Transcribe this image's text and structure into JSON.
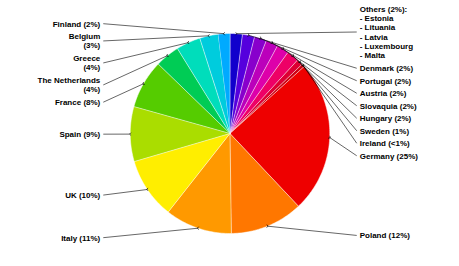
{
  "chart_data": {
    "type": "pie",
    "categories": [
      "Finland (2%)",
      "Others (2%):\n- Estonia\n- Lituania\n- Latvia\n- Luxembourg\n- Malta",
      "Denmark (2%)",
      "Portugal (2%)",
      "Austria (2%)",
      "Slovaquia (2%)",
      "Hungary (2%)",
      "Sweden (1%)",
      "Ireland (<1%)",
      "Germany (25%)",
      "Poland (12%)",
      "Italy (11%)",
      "UK (10%)",
      "Spain (9%)",
      "France (8%)",
      "The Netherlands\n(4%)",
      "Greece\n(4%)",
      "Belgium\n(3%)"
    ],
    "values": [
      2,
      2,
      2,
      2,
      2,
      2,
      2,
      1,
      0.5,
      25,
      12,
      11,
      10,
      9,
      8,
      4,
      4,
      3
    ],
    "colors": [
      "#00AAFF",
      "#1100CC",
      "#5500DD",
      "#8800CC",
      "#BB00BB",
      "#DD00AA",
      "#EE0066",
      "#DD0033",
      "#CC0011",
      "#EE0000",
      "#FF7700",
      "#FF9900",
      "#FFEE00",
      "#AADD00",
      "#55CC00",
      "#00CC55",
      "#00DDBB",
      "#00CCDD"
    ]
  }
}
